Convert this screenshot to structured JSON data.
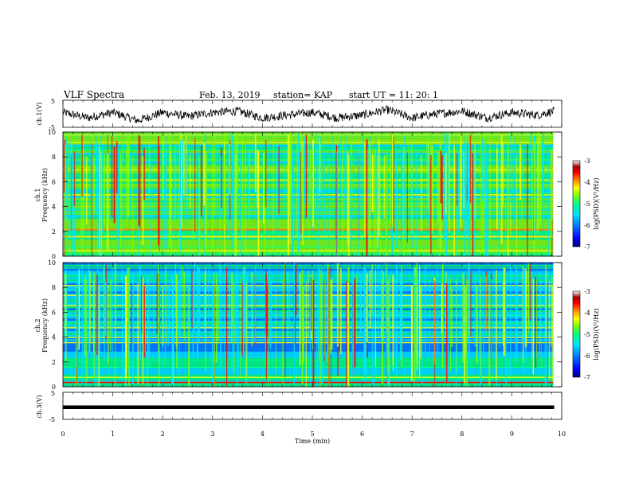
{
  "header": {
    "title": "VLF Spectra",
    "date": "Feb. 13, 2019",
    "station": "station= KAP",
    "start_time": "start  UT =   11: 20: 1"
  },
  "colorbar": {
    "label": "log(PSD)(V²/Hz)",
    "ticks": [
      "-3",
      "-4",
      "-5",
      "-6",
      "-7"
    ],
    "min": -7,
    "max": -3,
    "colors": [
      "#000080",
      "#0000ff",
      "#0080ff",
      "#00e5ff",
      "#00ff80",
      "#80ff00",
      "#ffff00",
      "#ff8000",
      "#ff0000",
      "#a00000",
      "#ffffff"
    ]
  },
  "xaxis": {
    "label": "Time (min)",
    "ticks": [
      "0",
      "1",
      "2",
      "3",
      "4",
      "5",
      "6",
      "7",
      "8",
      "9",
      "10"
    ]
  },
  "chart_data": [
    {
      "type": "line",
      "panel": "ch1-waveform",
      "ylabel": "ch.1(V)",
      "ylim": [
        -5,
        5
      ],
      "yticks": [
        "5",
        "-5"
      ],
      "xlim": [
        0,
        10
      ],
      "data_end_min": 9.85,
      "series": [
        {
          "color": "#000000",
          "x": [
            0,
            0.5,
            1,
            1.5,
            2,
            2.5,
            3,
            3.5,
            4,
            4.5,
            5,
            5.5,
            6,
            6.5,
            7,
            7.5,
            8,
            8.5,
            9,
            9.5,
            9.85
          ],
          "values": [
            0.5,
            -1.5,
            0.5,
            -2.5,
            0.5,
            -1,
            0.5,
            1,
            -1.5,
            -0.5,
            0.5,
            -1.5,
            -0.5,
            1.5,
            -1.5,
            0,
            1,
            -1.5,
            0.5,
            -0.5,
            1
          ]
        }
      ]
    },
    {
      "type": "heatmap",
      "panel": "ch1-spectrogram",
      "ylabel_lines": [
        "ch.1",
        "Frequency (kHz)"
      ],
      "ylim": [
        0,
        10
      ],
      "yticks": [
        "0",
        "2",
        "4",
        "6",
        "8",
        "10"
      ],
      "xlim": [
        0,
        10
      ],
      "zlim": [
        -7,
        -3
      ]
    },
    {
      "type": "heatmap",
      "panel": "ch2-spectrogram",
      "ylabel_lines": [
        "ch.2",
        "Frequency (kHz)"
      ],
      "ylim": [
        0,
        10
      ],
      "yticks": [
        "0",
        "2",
        "4",
        "6",
        "8",
        "10"
      ],
      "xlim": [
        0,
        10
      ],
      "zlim": [
        -7,
        -3
      ]
    },
    {
      "type": "line",
      "panel": "ch3-waveform",
      "ylabel": "ch.3(V)",
      "ylim": [
        -5,
        5
      ],
      "yticks": [
        "5",
        "-5"
      ],
      "xlim": [
        0,
        10
      ],
      "data_end_min": 9.85,
      "series": [
        {
          "color": "#000000",
          "x": [
            0,
            9.85
          ],
          "values": [
            -0.5,
            -0.5
          ]
        }
      ]
    }
  ]
}
